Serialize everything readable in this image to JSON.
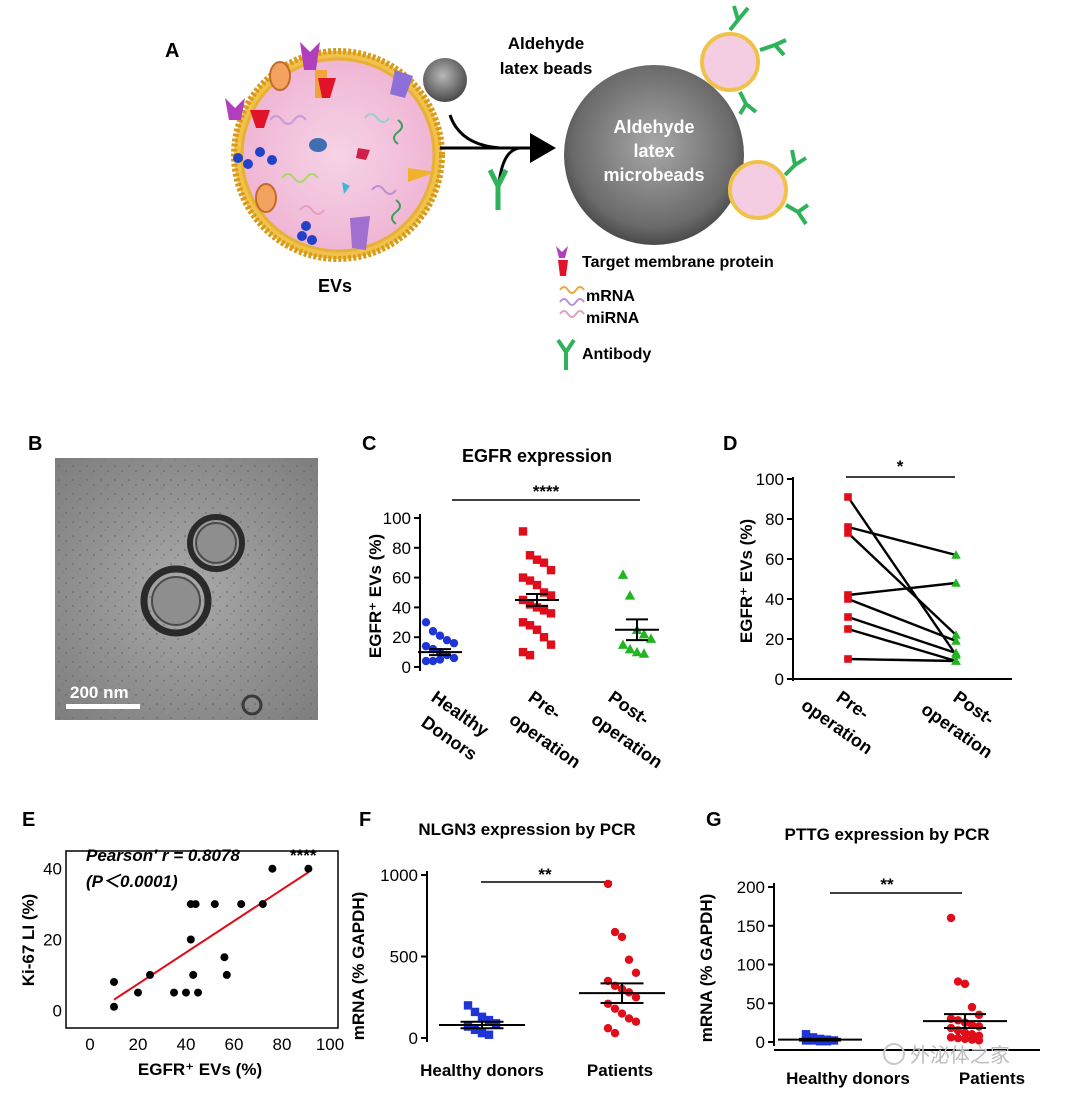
{
  "panelA": {
    "label": "A",
    "evs_label": "EVs",
    "small_bead_label_line1": "Aldehyde",
    "small_bead_label_line2": "latex beads",
    "big_bead_line1": "Aldehyde",
    "big_bead_line2": "latex",
    "big_bead_line3": "microbeads",
    "legend": {
      "target_protein": "Target membrane protein",
      "mrna": "mRNA",
      "mirna": "miRNA",
      "antibody": "Antibody"
    }
  },
  "panelB": {
    "label": "B",
    "scale_bar": "200 nm"
  },
  "panelC": {
    "label": "C",
    "significance": "****"
  },
  "panelD": {
    "label": "D",
    "significance": "*"
  },
  "panelE": {
    "label": "E",
    "pearson": "Pearson' r = 0.8078",
    "stars": "****",
    "pvalue": "(P＜0.0001)"
  },
  "panelF": {
    "label": "F",
    "significance": "**"
  },
  "panelG": {
    "label": "G",
    "significance": "**"
  },
  "watermark": "外泌体之家",
  "chart_data": [
    {
      "id": "C",
      "type": "scatter",
      "title": "EGFR expression",
      "ylabel": "EGFR⁺ EVs (%)",
      "ylim": [
        0,
        100
      ],
      "yticks": [
        "0",
        "20",
        "40",
        "60",
        "80",
        "100"
      ],
      "categories": [
        "Healthy Donors",
        "Pre-operation",
        "Post-operation"
      ],
      "colors": [
        "#1f35d6",
        "#e00d1b",
        "#22b522"
      ],
      "series": [
        {
          "name": "Healthy Donors",
          "mean": 10,
          "sem": 2,
          "values": [
            30,
            24,
            21,
            18,
            16,
            14,
            12,
            10,
            8,
            6,
            4,
            4,
            5
          ]
        },
        {
          "name": "Pre-operation",
          "mean": 45,
          "sem": 4,
          "values": [
            91,
            75,
            72,
            70,
            65,
            60,
            58,
            55,
            50,
            48,
            45,
            42,
            40,
            38,
            36,
            30,
            28,
            25,
            20,
            15,
            10,
            8
          ]
        },
        {
          "name": "Post-operation",
          "mean": 25,
          "sem": 7,
          "values": [
            62,
            48,
            25,
            22,
            19,
            15,
            12,
            10,
            9
          ]
        }
      ]
    },
    {
      "id": "D",
      "type": "line",
      "title": "",
      "ylabel": "EGFR⁺ EVs  (%)",
      "ylim": [
        0,
        100
      ],
      "yticks": [
        "0",
        "20",
        "40",
        "60",
        "80",
        "100"
      ],
      "categories": [
        "Pre-operation",
        "Post-operation"
      ],
      "pairs": [
        [
          91,
          12
        ],
        [
          76,
          62
        ],
        [
          73,
          22
        ],
        [
          42,
          48
        ],
        [
          40,
          19
        ],
        [
          31,
          13
        ],
        [
          25,
          9
        ],
        [
          10,
          9
        ]
      ]
    },
    {
      "id": "E",
      "type": "scatter",
      "title": "",
      "xlabel": "EGFR⁺  EVs (%)",
      "ylabel": "Ki-67 LI (%)",
      "xlim": [
        0,
        100
      ],
      "ylim": [
        -5,
        45
      ],
      "xticks": [
        "0",
        "20",
        "40",
        "60",
        "80",
        "100"
      ],
      "yticks": [
        "0",
        "20",
        "40"
      ],
      "x": [
        10,
        10,
        20,
        25,
        35,
        40,
        42,
        42,
        43,
        44,
        45,
        52,
        56,
        57,
        63,
        72,
        76,
        91
      ],
      "y": [
        1,
        8,
        5,
        10,
        5,
        5,
        20,
        30,
        10,
        30,
        5,
        30,
        15,
        10,
        30,
        30,
        40,
        40
      ],
      "fit": {
        "x": [
          10,
          91
        ],
        "y": [
          3,
          39
        ]
      }
    },
    {
      "id": "F",
      "type": "scatter",
      "title": "NLGN3  expression by PCR",
      "ylabel": "mRNA (% GAPDH)",
      "ylim": [
        0,
        1000
      ],
      "yticks": [
        "0",
        "500",
        "1000"
      ],
      "categories": [
        "Healthy donors",
        "Patients"
      ],
      "colors": [
        "#1f35d6",
        "#e00d1b"
      ],
      "series": [
        {
          "name": "Healthy donors",
          "mean": 80,
          "sem": 20,
          "values": [
            200,
            160,
            130,
            110,
            90,
            70,
            50,
            30,
            20
          ]
        },
        {
          "name": "Patients",
          "mean": 275,
          "sem": 60,
          "values": [
            945,
            650,
            620,
            480,
            400,
            350,
            320,
            300,
            280,
            250,
            210,
            180,
            150,
            120,
            100,
            60,
            30
          ]
        }
      ]
    },
    {
      "id": "G",
      "type": "scatter",
      "title": "PTTG expression by PCR",
      "ylabel": "mRNA (% GAPDH)",
      "ylim": [
        0,
        200
      ],
      "yticks": [
        "0",
        "50",
        "100",
        "150",
        "200"
      ],
      "categories": [
        "Healthy  donors",
        "Patients"
      ],
      "colors": [
        "#1f35d6",
        "#e00d1b"
      ],
      "series": [
        {
          "name": "Healthy  donors",
          "mean": 3,
          "sem": 1,
          "values": [
            10,
            6,
            4,
            3,
            2,
            2,
            2,
            1,
            1
          ]
        },
        {
          "name": "Patients",
          "mean": 27,
          "sem": 9,
          "values": [
            160,
            78,
            75,
            45,
            35,
            30,
            28,
            25,
            22,
            20,
            18,
            15,
            12,
            10,
            8,
            6,
            5,
            4,
            3,
            2
          ]
        }
      ]
    }
  ]
}
